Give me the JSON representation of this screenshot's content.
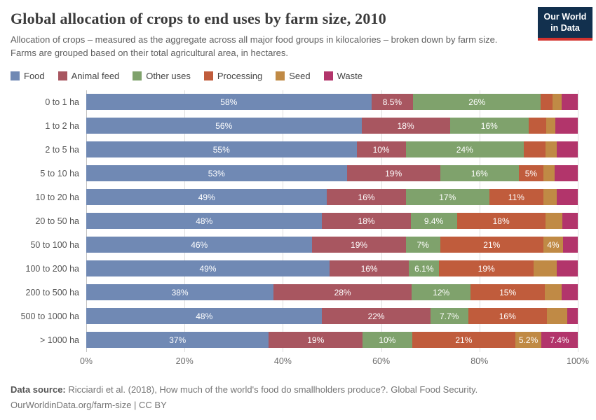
{
  "header": {
    "title": "Global allocation of crops to end uses by farm size, 2010",
    "subtitle": "Allocation of crops – measured as the aggregate across all major food groups in kilocalories – broken down by farm size. Farms are grouped based on their total agricultural area, in hectares.",
    "logo_line1": "Our World",
    "logo_line2": "in Data",
    "logo_bg_color": "#12304e",
    "logo_accent_color": "#d4332f"
  },
  "chart_data": {
    "type": "bar",
    "stacked": true,
    "orientation": "horizontal",
    "unit": "%",
    "title": "Global allocation of crops to end uses by farm size, 2010",
    "legend_position": "top",
    "grid": true,
    "xlim": [
      0,
      100
    ],
    "x_ticks": [
      "0%",
      "20%",
      "40%",
      "60%",
      "80%",
      "100%"
    ],
    "x_tick_positions": [
      0,
      20,
      40,
      60,
      80,
      100
    ],
    "categories": [
      "0 to 1 ha",
      "1 to 2 ha",
      "2 to 5 ha",
      "5 to 10 ha",
      "10 to 20 ha",
      "20 to 50 ha",
      "50 to 100 ha",
      "100 to 200 ha",
      "200 to 500 ha",
      "500 to 1000 ha",
      "> 1000 ha"
    ],
    "series": [
      {
        "name": "Food",
        "color": "#7089b4",
        "values": [
          58,
          56,
          55,
          53,
          49,
          48,
          46,
          49,
          38,
          48,
          37
        ],
        "labels": [
          "58%",
          "56%",
          "55%",
          "53%",
          "49%",
          "48%",
          "46%",
          "49%",
          "38%",
          "48%",
          "37%"
        ]
      },
      {
        "name": "Animal feed",
        "color": "#a85660",
        "values": [
          8.5,
          18,
          10,
          19,
          16,
          18,
          19,
          16,
          28,
          22,
          19
        ],
        "labels": [
          "8.5%",
          "18%",
          "10%",
          "19%",
          "16%",
          "18%",
          "19%",
          "16%",
          "28%",
          "22%",
          "19%"
        ]
      },
      {
        "name": "Other uses",
        "color": "#7fa26c",
        "values": [
          26,
          16,
          24,
          16,
          17,
          9.4,
          7,
          6.1,
          12,
          7.7,
          10
        ],
        "labels": [
          "26%",
          "16%",
          "24%",
          "16%",
          "17%",
          "9.4%",
          "7%",
          "6.1%",
          "12%",
          "7.7%",
          "10%"
        ]
      },
      {
        "name": "Processing",
        "color": "#c05c3c",
        "values": [
          2.4,
          3.6,
          4.5,
          5,
          11,
          18,
          21,
          19,
          15,
          16,
          21
        ],
        "labels": [
          "",
          "",
          "",
          "5%",
          "11%",
          "18%",
          "21%",
          "19%",
          "15%",
          "16%",
          "21%"
        ]
      },
      {
        "name": "Seed",
        "color": "#c08a45",
        "values": [
          1.8,
          1.9,
          2.2,
          2.3,
          2.7,
          3.4,
          4,
          4.6,
          3.5,
          4.2,
          5.2
        ],
        "labels": [
          "",
          "",
          "",
          "",
          "",
          "",
          "4%",
          "",
          "",
          "",
          "5.2%"
        ]
      },
      {
        "name": "Waste",
        "color": "#b2356b",
        "values": [
          3.3,
          4.5,
          4.3,
          4.7,
          4.3,
          3.2,
          3,
          4.3,
          3.2,
          2.1,
          7.4
        ],
        "labels": [
          "",
          "",
          "",
          "",
          "",
          "",
          "",
          "",
          "",
          "",
          "7.4%"
        ]
      }
    ]
  },
  "footer": {
    "datasource_label": "Data source:",
    "datasource_text": " Ricciardi et al. (2018), How much of the world's food do smallholders produce?. Global Food Security.",
    "license_line": "OurWorldinData.org/farm-size | CC BY"
  }
}
